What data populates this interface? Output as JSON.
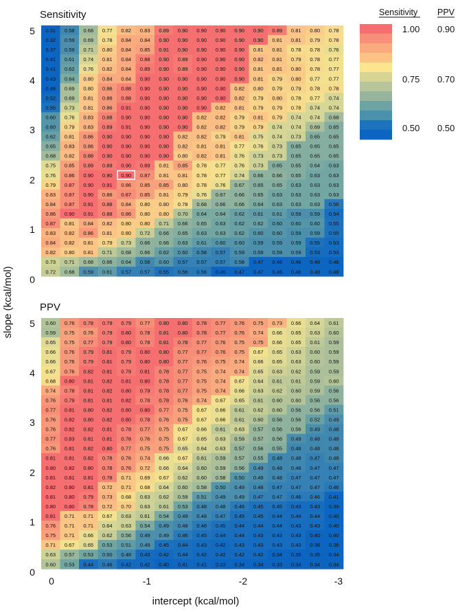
{
  "xlabel": "intercept (kcal/mol)",
  "ylabel": "slope (kcal/mol)",
  "x_ticks": [
    "0",
    "-1",
    "-2",
    "-3"
  ],
  "y_ticks": [
    "0",
    "1",
    "2",
    "3",
    "4",
    "5"
  ],
  "legend": {
    "headers": [
      "Sensitivity",
      "PPV"
    ],
    "sensitivity_ticks": [
      "1.00",
      "0.75",
      "0.50"
    ],
    "ppv_ticks": [
      "0.90",
      "0.70",
      "0.50"
    ],
    "colors": [
      "#f56f70",
      "#f88f7b",
      "#faaa7f",
      "#fbc486",
      "#fce58f",
      "#d6d596",
      "#b8c59a",
      "#97b59d",
      "#6ea3a3",
      "#4b90ad",
      "#1d73bd",
      "#0c65c0"
    ]
  },
  "chart_data": [
    {
      "type": "heatmap",
      "title": "Sensitivity",
      "highlighted_cell": {
        "row_from_top": 15,
        "col": 4,
        "value": "0.90"
      },
      "rows": [
        "0.31 0.58 0.68 0.77 0.82 0.83 0.89 0.90 0.90 0.90 0.90 0.90 0.89 0.81 0.80 0.78",
        "0.32 0.59 0.69 0.78 0.84 0.84 0.90 0.90 0.90 0.90 0.90 0.90 0.81 0.81 0.79 0.78",
        "0.37 0.59 0.71 0.80 0.84 0.85 0.91 0.90 0.90 0.90 0.90 0.81 0.81 0.78 0.78 0.76",
        "0.41 0.61 0.74 0.81 0.84 0.88 0.90 0.89 0.90 0.90 0.90 0.82 0.81 0.79 0.78 0.77",
        "0.41 0.62 0.76 0.82 0.84 0.89 0.90 0.89 0.90 0.90 0.90 0.81 0.81 0.80 0.78 0.77",
        "0.43 0.64 0.80 0.84 0.84 0.90 0.90 0.90 0.90 0.90 0.90 0.81 0.79 0.80 0.77 0.77",
        "0.46 0.69 0.80 0.86 0.88 0.90 0.90 0.90 0.90 0.90 0.82 0.80 0.79 0.79 0.78 0.78",
        "0.52 0.69 0.81 0.86 0.88 0.90 0.90 0.90 0.90 0.90 0.82 0.79 0.80 0.78 0.77 0.74",
        "0.55 0.73 0.81 0.86 0.91 0.90 0.90 0.90 0.90 0.82 0.81 0.79 0.79 0.78 0.74 0.74",
        "0.60 0.76 0.83 0.88 0.90 0.90 0.90 0.90 0.82 0.82 0.79 0.81 0.79 0.74 0.74 0.68",
        "0.60 0.79 0.83 0.89 0.91 0.90 0.90 0.90 0.82 0.82 0.79 0.79 0.74 0.74 0.69 0.65",
        "0.62 0.81 0.86 0.90 0.90 0.90 0.90 0.82 0.82 0.79 0.81 0.75 0.74 0.73 0.65 0.65",
        "0.65 0.83 0.86 0.90 0.90 0.90 0.90 0.82 0.81 0.81 0.77 0.76 0.73 0.65 0.65 0.65",
        "0.68 0.82 0.88 0.90 0.90 0.90 0.90 0.80 0.82 0.81 0.76 0.73 0.73 0.65 0.65 0.65",
        "0.75 0.85 0.89 0.89 0.90 0.89 0.81 0.85 0.78 0.77 0.76 0.73 0.65 0.65 0.64 0.63",
        "0.76 0.86 0.90 0.90 0.90 0.87 0.81 0.81 0.78 0.77 0.74 0.66 0.66 0.65 0.63 0.63",
        "0.79 0.87 0.90 0.91 0.86 0.85 0.85 0.80 0.78 0.76 0.67 0.65 0.65 0.63 0.63 0.63",
        "0.83 0.87 0.90 0.86 0.87 0.85 0.81 0.79 0.76 0.67 0.66 0.65 0.63 0.63 0.63 0.63",
        "0.84 0.87 0.91 0.88 0.84 0.80 0.80 0.78 0.68 0.66 0.66 0.64 0.63 0.63 0.63 0.56",
        "0.86 0.90 0.91 0.88 0.86 0.80 0.80 0.70 0.64 0.64 0.62 0.61 0.61 0.59 0.59 0.54",
        "0.87 0.81 0.84 0.82 0.80 0.80 0.71 0.66 0.65 0.63 0.62 0.62 0.60 0.60 0.60 0.55",
        "0.83 0.82 0.86 0.81 0.80 0.72 0.66 0.65 0.63 0.63 0.62 0.60 0.60 0.59 0.59 0.55",
        "0.84 0.82 0.81 0.79 0.73 0.66 0.66 0.63 0.61 0.60 0.60 0.59 0.59 0.59 0.55 0.53",
        "0.82 0.80 0.81 0.71 0.68 0.66 0.62 0.60 0.58 0.57 0.59 0.59 0.59 0.59 0.53 0.53",
        "0.73 0.71 0.68 0.66 0.64 0.58 0.60 0.57 0.57 0.57 0.58 0.47 0.48 0.48 0.48 0.48",
        "0.72 0.68 0.59 0.61 0.57 0.57 0.55 0.56 0.56 0.46 0.47 0.47 0.46 0.48 0.48 0.48"
      ]
    },
    {
      "type": "heatmap",
      "title": "PPV",
      "rows": [
        "0.60 0.76 0.78 0.79 0.79 0.77 0.80 0.80 0.78 0.77 0.76 0.75 0.73 0.66 0.64 0.61",
        "0.59 0.75 0.76 0.79 0.80 0.78 0.81 0.80 0.78 0.77 0.76 0.74 0.66 0.65 0.63 0.60",
        "0.65 0.75 0.77 0.79 0.80 0.78 0.81 0.78 0.77 0.76 0.75 0.75 0.66 0.65 0.61 0.59",
        "0.66 0.76 0.79 0.81 0.79 0.80 0.80 0.77 0.77 0.76 0.75 0.67 0.65 0.63 0.60 0.59",
        "0.66 0.76 0.79 0.81 0.79 0.80 0.80 0.77 0.76 0.75 0.74 0.66 0.65 0.63 0.60 0.59",
        "0.67 0.76 0.82 0.81 0.79 0.81 0.78 0.77 0.75 0.74 0.74 0.65 0.63 0.62 0.59 0.59",
        "0.68 0.80 0.81 0.82 0.81 0.80 0.78 0.77 0.75 0.74 0.67 0.64 0.61 0.61 0.59 0.60",
        "0.74 0.78 0.81 0.82 0.80 0.79 0.78 0.77 0.75 0.74 0.66 0.63 0.62 0.60 0.59 0.56",
        "0.76 0.79 0.81 0.81 0.82 0.78 0.78 0.76 0.74 0.67 0.65 0.61 0.60 0.60 0.56 0.56",
        "0.77 0.81 0.80 0.82 0.80 0.80 0.77 0.75 0.67 0.66 0.61 0.62 0.60 0.56 0.56 0.51",
        "0.76 0.82 0.80 0.82 0.80 0.78 0.76 0.75 0.67 0.66 0.61 0.60 0.56 0.56 0.52 0.49",
        "0.76 0.82 0.82 0.81 0.78 0.77 0.75 0.67 0.66 0.61 0.63 0.57 0.56 0.56 0.49 0.48",
        "0.77 0.83 0.81 0.81 0.78 0.76 0.75 0.67 0.65 0.63 0.59 0.57 0.56 0.49 0.48 0.48",
        "0.76 0.81 0.82 0.80 0.77 0.75 0.75 0.65 0.64 0.63 0.57 0.56 0.55 0.48 0.48 0.48",
        "0.81 0.81 0.82 0.78 0.76 0.74 0.66 0.67 0.61 0.59 0.57 0.55 0.48 0.48 0.47 0.48",
        "0.80 0.82 0.80 0.78 0.76 0.72 0.66 0.64 0.60 0.59 0.56 0.49 0.48 0.48 0.47 0.47",
        "0.81 0.81 0.81 0.78 0.71 0.69 0.67 0.62 0.60 0.58 0.50 0.49 0.48 0.47 0.47 0.47",
        "0.82 0.80 0.81 0.72 0.71 0.68 0.64 0.60 0.58 0.50 0.49 0.48 0.47 0.47 0.47 0.46",
        "0.81 0.80 0.79 0.73 0.68 0.63 0.62 0.59 0.51 0.49 0.49 0.47 0.47 0.46 0.46 0.41",
        "0.80 0.80 0.78 0.72 0.70 0.63 0.61 0.53 0.48 0.48 0.46 0.45 0.45 0.43 0.43 0.39",
        "0.81 0.71 0.71 0.67 0.63 0.61 0.54 0.49 0.48 0.47 0.45 0.45 0.44 0.44 0.44 0.40",
        "0.76 0.71 0.71 0.64 0.63 0.54 0.49 0.48 0.46 0.45 0.44 0.44 0.44 0.43 0.43 0.40",
        "0.75 0.71 0.66 0.62 0.56 0.49 0.49 0.46 0.45 0.44 0.44 0.43 0.43 0.43 0.40 0.40",
        "0.71 0.67 0.65 0.53 0.51 0.49 0.45 0.44 0.43 0.42 0.43 0.43 0.43 0.43 0.38 0.38",
        "0.63 0.57 0.53 0.50 0.48 0.43 0.42 0.44 0.42 0.42 0.42 0.42 0.34 0.35 0.35 0.34",
        "0.60 0.53 0.44 0.46 0.42 0.42 0.40 0.41 0.41 0.33 0.34 0.34 0.33 0.34 0.34 0.34"
      ]
    }
  ]
}
